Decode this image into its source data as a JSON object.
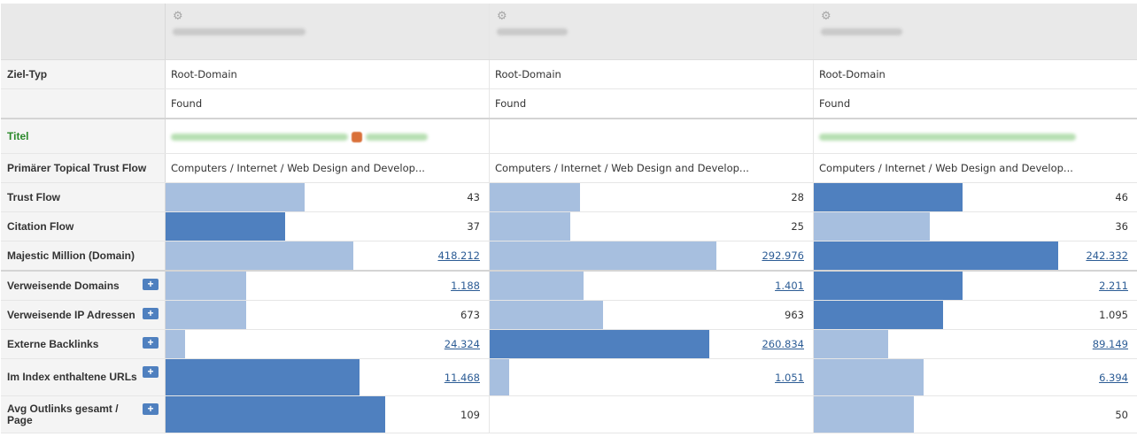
{
  "labels": {
    "ziel_typ": "Ziel-Typ",
    "titel": "Titel",
    "primary_ttf": "Primärer Topical Trust Flow",
    "trust_flow": "Trust Flow",
    "citation_flow": "Citation Flow",
    "majestic_million": "Majestic Million (Domain)",
    "ref_domains": "Verweisende Domains",
    "ref_ips": "Verweisende IP Adressen",
    "ext_backlinks": "Externe Backlinks",
    "indexed_urls": "Im Index enthaltene URLs",
    "avg_outlinks": "Avg Outlinks gesamt / Page",
    "add": "+"
  },
  "colors": {
    "bar_dark": "#4f80bf",
    "bar_light": "#a7bfdf",
    "title_green": "#2c8a2c",
    "link": "#2c5c95"
  },
  "columns": [
    {
      "settings_icon": "gear-icon",
      "ziel_typ": "Root-Domain",
      "status": "Found",
      "topical": "Computers / Internet / Web Design and Develop...",
      "trust_flow": "43",
      "trust_flow_fill": 0.43,
      "trust_flow_style": "light",
      "citation_flow": "37",
      "citation_flow_fill": 0.37,
      "citation_flow_style": "dark",
      "majestic_million": "418.212",
      "majestic_million_fill": 0.58,
      "majestic_million_style": "light",
      "ref_domains": "1.188",
      "ref_domains_fill": 0.25,
      "ref_domains_style": "light",
      "ref_ips": "673",
      "ref_ips_fill": 0.25,
      "ref_ips_style": "light",
      "ext_backlinks": "24.324",
      "ext_backlinks_fill": 0.06,
      "ext_backlinks_style": "light",
      "indexed_urls": "11.468",
      "indexed_urls_fill": 0.6,
      "indexed_urls_style": "dark",
      "avg_outlinks": "109",
      "avg_outlinks_fill": 0.68,
      "avg_outlinks_style": "dark"
    },
    {
      "settings_icon": "gear-icon",
      "ziel_typ": "Root-Domain",
      "status": "Found",
      "topical": "Computers / Internet / Web Design and Develop...",
      "trust_flow": "28",
      "trust_flow_fill": 0.28,
      "trust_flow_style": "light",
      "citation_flow": "25",
      "citation_flow_fill": 0.25,
      "citation_flow_style": "light",
      "majestic_million": "292.976",
      "majestic_million_fill": 0.7,
      "majestic_million_style": "light",
      "ref_domains": "1.401",
      "ref_domains_fill": 0.29,
      "ref_domains_style": "light",
      "ref_ips": "963",
      "ref_ips_fill": 0.35,
      "ref_ips_style": "light",
      "ext_backlinks": "260.834",
      "ext_backlinks_fill": 0.68,
      "ext_backlinks_style": "dark",
      "indexed_urls": "1.051",
      "indexed_urls_fill": 0.06,
      "indexed_urls_style": "light",
      "avg_outlinks": "",
      "avg_outlinks_fill": 0,
      "avg_outlinks_style": "light"
    },
    {
      "settings_icon": "gear-icon",
      "ziel_typ": "Root-Domain",
      "status": "Found",
      "topical": "Computers / Internet / Web Design and Develop...",
      "trust_flow": "46",
      "trust_flow_fill": 0.46,
      "trust_flow_style": "dark",
      "citation_flow": "36",
      "citation_flow_fill": 0.36,
      "citation_flow_style": "light",
      "majestic_million": "242.332",
      "majestic_million_fill": 0.755,
      "majestic_million_style": "dark",
      "ref_domains": "2.211",
      "ref_domains_fill": 0.46,
      "ref_domains_style": "dark",
      "ref_ips": "1.095",
      "ref_ips_fill": 0.4,
      "ref_ips_style": "dark",
      "ext_backlinks": "89.149",
      "ext_backlinks_fill": 0.23,
      "ext_backlinks_style": "light",
      "indexed_urls": "6.394",
      "indexed_urls_fill": 0.34,
      "indexed_urls_style": "light",
      "avg_outlinks": "50",
      "avg_outlinks_fill": 0.31,
      "avg_outlinks_style": "light"
    }
  ]
}
